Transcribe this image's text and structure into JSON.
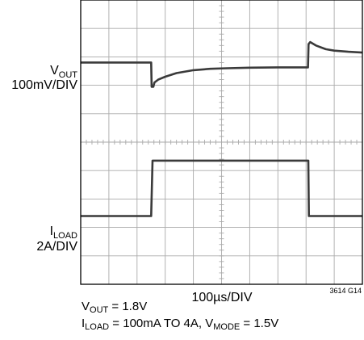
{
  "chart_data": {
    "type": "line",
    "subtype": "oscilloscope-transient-response",
    "grid": true,
    "x": {
      "unit": "µs",
      "range": [
        0,
        1000
      ],
      "divisions": 10,
      "label": "100µs/DIV"
    },
    "channels": [
      {
        "id": "vout",
        "label_main": "V",
        "label_sub": "OUT",
        "scale_label": "100mV/DIV",
        "unit": "mV",
        "baseline_div": 2.2,
        "trace": [
          [
            0,
            0
          ],
          [
            250,
            0
          ],
          [
            252,
            -85
          ],
          [
            258,
            -85
          ],
          [
            262,
            -70
          ],
          [
            275,
            -60
          ],
          [
            300,
            -50
          ],
          [
            340,
            -37
          ],
          [
            400,
            -27
          ],
          [
            460,
            -22
          ],
          [
            520,
            -20
          ],
          [
            600,
            -18
          ],
          [
            700,
            -17
          ],
          [
            807,
            -17
          ],
          [
            809,
            65
          ],
          [
            815,
            72
          ],
          [
            835,
            60
          ],
          [
            870,
            47
          ],
          [
            900,
            42
          ],
          [
            950,
            38
          ],
          [
            1000,
            35
          ]
        ]
      },
      {
        "id": "iload",
        "label_main": "I",
        "label_sub": "LOAD",
        "scale_label": "2A/DIV",
        "unit": "A",
        "baseline_div": 7.6,
        "trace": [
          [
            0,
            0.1
          ],
          [
            250,
            0.1
          ],
          [
            255,
            4.0
          ],
          [
            808,
            4.0
          ],
          [
            810,
            0.1
          ],
          [
            1000,
            0.1
          ]
        ]
      }
    ],
    "figure_id": "3614 G14"
  },
  "captions": {
    "line1": {
      "main": "V",
      "sub": "OUT",
      "rest": " = 1.8V"
    },
    "line2": {
      "part1_main": "I",
      "part1_sub": "LOAD",
      "part1_rest": " = 100mA TO 4A, V",
      "part2_sub": "MODE",
      "part2_rest": " = 1.5V"
    }
  },
  "style": {
    "trace_color": "#3a3a3a",
    "grid_color": "#aaaaaa",
    "frame_color": "#000000"
  }
}
